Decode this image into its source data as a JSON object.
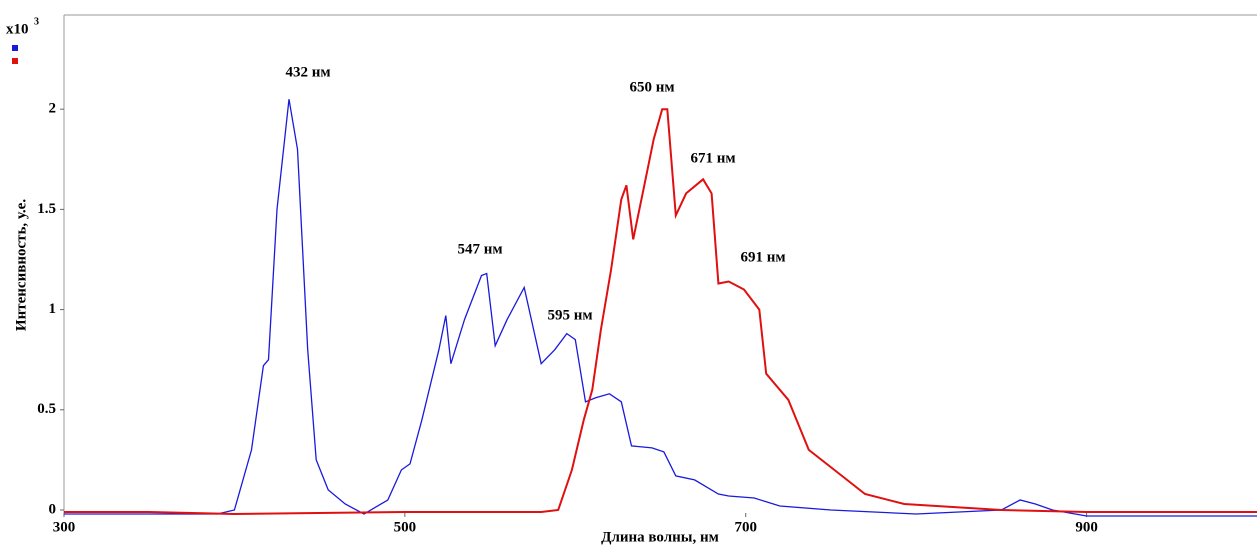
{
  "chart_data": {
    "type": "line",
    "y_multiplier": "x10",
    "y_multiplier_exp": "3",
    "xlabel": "Длина волны, нм",
    "ylabel": "Интенсивность, у.е.",
    "xlim": [
      300,
      1000
    ],
    "ylim": [
      -0.035,
      2.47
    ],
    "xticks": [
      300,
      500,
      700,
      900
    ],
    "yticks": [
      0,
      0.5,
      1,
      1.5,
      2
    ],
    "grid": false,
    "annotations": [
      "432 нм",
      "547 нм",
      "595 нм",
      "650 нм",
      "671 нм",
      "691 нм"
    ],
    "series": [
      {
        "color": "#1a1adc",
        "x": [
          300,
          390,
          400,
          410,
          417,
          420,
          425,
          432,
          437,
          443,
          448,
          455,
          465,
          476,
          490,
          498,
          503,
          510,
          520,
          524,
          527,
          535,
          545,
          548,
          553,
          560,
          570,
          580,
          588,
          595,
          600,
          606,
          612,
          620,
          627,
          633,
          645,
          652,
          659,
          670,
          684,
          690,
          705,
          720,
          750,
          800,
          850,
          861,
          870,
          880,
          900,
          1000
        ],
        "y": [
          -0.02,
          -0.02,
          0.0,
          0.3,
          0.72,
          0.75,
          1.5,
          2.05,
          1.8,
          0.8,
          0.25,
          0.1,
          0.03,
          -0.02,
          0.05,
          0.2,
          0.23,
          0.45,
          0.8,
          0.97,
          0.73,
          0.95,
          1.17,
          1.18,
          0.82,
          0.95,
          1.11,
          0.73,
          0.8,
          0.88,
          0.85,
          0.54,
          0.56,
          0.58,
          0.54,
          0.32,
          0.31,
          0.29,
          0.17,
          0.15,
          0.08,
          0.07,
          0.06,
          0.02,
          0.0,
          -0.02,
          0.0,
          0.05,
          0.03,
          0.0,
          -0.03,
          -0.03
        ]
      },
      {
        "color": "#e01010",
        "x": [
          300,
          350,
          400,
          500,
          580,
          590,
          598,
          605,
          610,
          615,
          621,
          627,
          630,
          634,
          640,
          646,
          651,
          654,
          659,
          665,
          675,
          680,
          684,
          690,
          699,
          708,
          712,
          725,
          737,
          752,
          770,
          793,
          850,
          900,
          1000
        ],
        "y": [
          -0.01,
          -0.01,
          -0.02,
          -0.01,
          -0.01,
          0.0,
          0.2,
          0.45,
          0.6,
          0.9,
          1.2,
          1.55,
          1.62,
          1.35,
          1.6,
          1.85,
          2.0,
          2.0,
          1.47,
          1.58,
          1.65,
          1.58,
          1.13,
          1.14,
          1.1,
          1.0,
          0.68,
          0.55,
          0.3,
          0.2,
          0.08,
          0.03,
          0.0,
          -0.01,
          -0.01
        ]
      }
    ]
  }
}
